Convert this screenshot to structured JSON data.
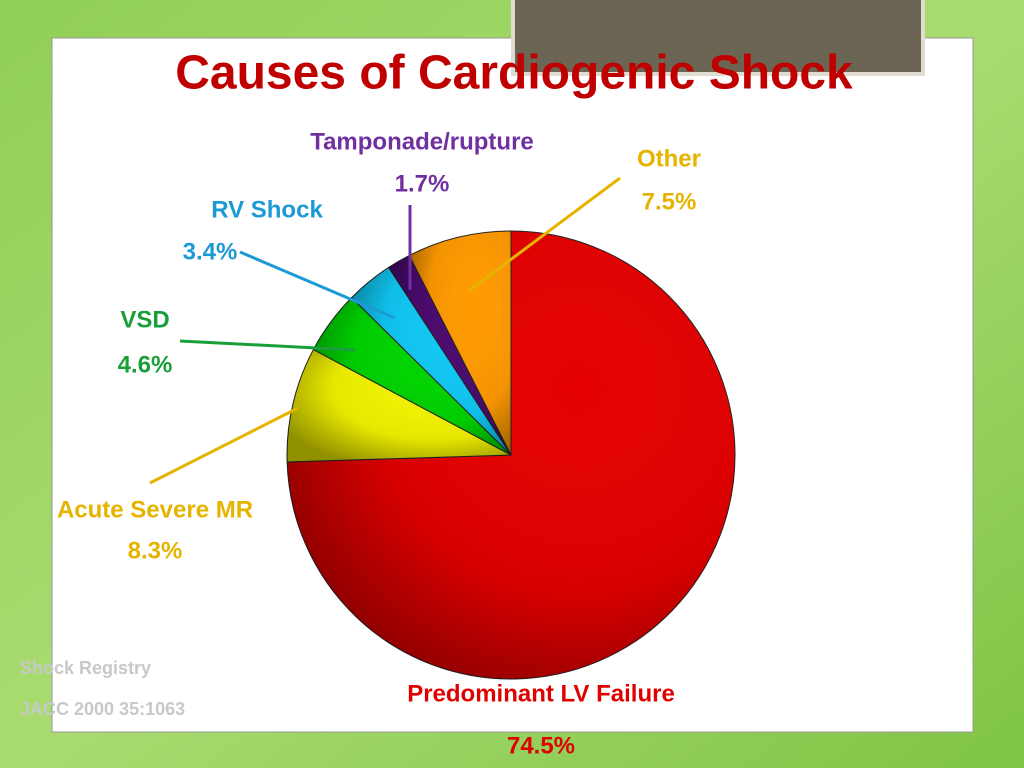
{
  "chart_data": {
    "type": "pie",
    "title": "Causes of Cardiogenic Shock",
    "categories": [
      "Predominant LV Failure",
      "Acute Severe MR",
      "VSD",
      "RV Shock",
      "Tamponade/rupture",
      "Other"
    ],
    "values": [
      74.5,
      8.3,
      4.6,
      3.4,
      1.7,
      7.5
    ],
    "value_labels": [
      "74.5%",
      "8.3%",
      "4.6%",
      "3.4%",
      "1.7%",
      "7.5%"
    ],
    "colors": [
      "#e40000",
      "#f2f200",
      "#00d400",
      "#10c8f4",
      "#4a0a6e",
      "#ff9a00"
    ],
    "label_colors": [
      "#e00000",
      "#e6b400",
      "#1a9e3a",
      "#1b9ad6",
      "#7030a0",
      "#e6b400"
    ],
    "source": [
      "Shock Registry",
      "JACC 2000 35:1063"
    ]
  }
}
